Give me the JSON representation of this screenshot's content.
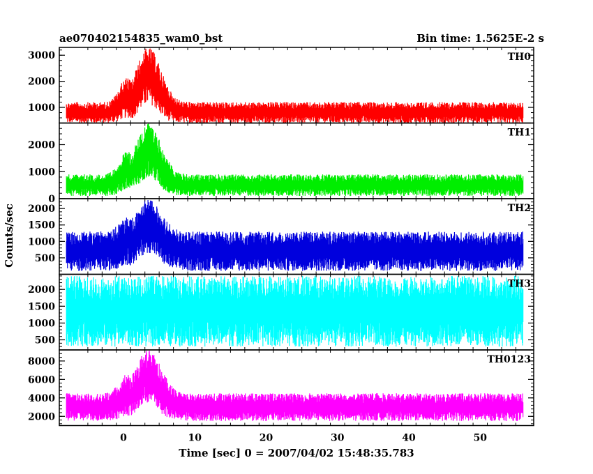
{
  "title_left": "ae070402154835_wam0_bst",
  "title_right": "Bin time: 1.5625E-2 s",
  "chart_data": {
    "type": "line",
    "xlabel": "Time [sec] 0 = 2007/04/02 15:48:35.783",
    "ylabel": "Counts/sec",
    "xlim": [
      -9,
      57.5
    ],
    "xticks": [
      0,
      10,
      20,
      30,
      40,
      50
    ],
    "x_range_data": [
      -8,
      56
    ],
    "panels": [
      {
        "name": "TH0",
        "color": "#ff0000",
        "ylim": [
          400,
          3300
        ],
        "yticks": [
          1000,
          2000,
          3000
        ],
        "baseline_low": 400,
        "baseline_high": 1200,
        "peak_x": 3.5,
        "peak_max": 3300
      },
      {
        "name": "TH1",
        "color": "#00ee00",
        "ylim": [
          0,
          2800
        ],
        "yticks": [
          0,
          1000,
          2000
        ],
        "baseline_low": 100,
        "baseline_high": 900,
        "peak_x": 3.5,
        "peak_max": 2800
      },
      {
        "name": "TH2",
        "color": "#0000dd",
        "ylim": [
          0,
          2300
        ],
        "yticks": [
          500,
          1000,
          1500,
          2000
        ],
        "baseline_low": 100,
        "baseline_high": 1300,
        "peak_x": 3.5,
        "peak_max": 2300
      },
      {
        "name": "TH3",
        "color": "#00ffff",
        "ylim": [
          200,
          2450
        ],
        "yticks": [
          500,
          1000,
          1500,
          2000
        ],
        "baseline_low": 300,
        "baseline_high": 2400,
        "peak_x": null,
        "peak_max": 2400
      },
      {
        "name": "TH0123",
        "color": "#ff00ff",
        "ylim": [
          1000,
          9200
        ],
        "yticks": [
          2000,
          4000,
          6000,
          8000
        ],
        "baseline_low": 1500,
        "baseline_high": 4500,
        "peak_x": 3.5,
        "peak_max": 9200
      }
    ]
  }
}
